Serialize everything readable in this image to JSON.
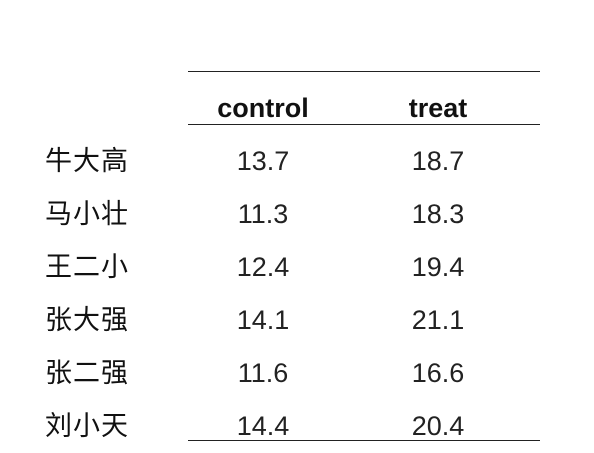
{
  "table": {
    "columns": [
      "control",
      "treat"
    ],
    "rows": [
      {
        "name": "牛大高",
        "control": "13.7",
        "treat": "18.7"
      },
      {
        "name": "马小壮",
        "control": "11.3",
        "treat": "18.3"
      },
      {
        "name": "王二小",
        "control": "12.4",
        "treat": "19.4"
      },
      {
        "name": "张大强",
        "control": "14.1",
        "treat": "21.1"
      },
      {
        "name": "张二强",
        "control": "11.6",
        "treat": "16.6"
      },
      {
        "name": "刘小天",
        "control": "14.4",
        "treat": "20.4"
      }
    ]
  }
}
